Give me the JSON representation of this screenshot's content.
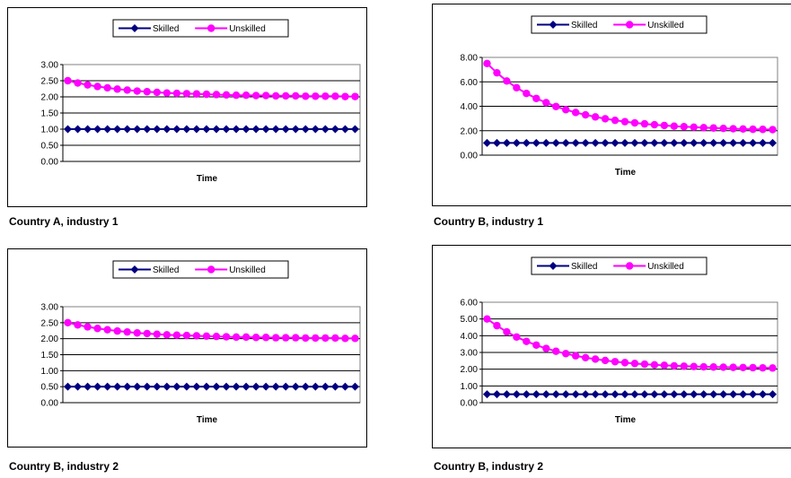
{
  "chart_data": [
    {
      "type": "line",
      "caption": "Country A, industry 1",
      "xlabel": "Time",
      "ylabel": "",
      "ylim": [
        0,
        3
      ],
      "yticks": [
        "0.00",
        "0.50",
        "1.00",
        "1.50",
        "2.00",
        "2.50",
        "3.00"
      ],
      "grid": true,
      "legend": "top-center",
      "series": [
        {
          "name": "Skilled",
          "color": "#000080",
          "marker": "diamond",
          "values": [
            1,
            1,
            1,
            1,
            1,
            1,
            1,
            1,
            1,
            1,
            1,
            1,
            1,
            1,
            1,
            1,
            1,
            1,
            1,
            1,
            1,
            1,
            1,
            1,
            1,
            1,
            1,
            1,
            1,
            1
          ]
        },
        {
          "name": "Unskilled",
          "color": "#ff00ff",
          "marker": "circle",
          "values": [
            2.5,
            2.43,
            2.37,
            2.32,
            2.28,
            2.24,
            2.21,
            2.18,
            2.16,
            2.14,
            2.12,
            2.11,
            2.1,
            2.09,
            2.08,
            2.07,
            2.06,
            2.05,
            2.05,
            2.04,
            2.04,
            2.03,
            2.03,
            2.03,
            2.02,
            2.02,
            2.02,
            2.02,
            2.01,
            2.01
          ]
        }
      ]
    },
    {
      "type": "line",
      "caption": "Country B, industry 1",
      "xlabel": "Time",
      "ylabel": "",
      "ylim": [
        0,
        8
      ],
      "yticks": [
        "0.00",
        "2.00",
        "4.00",
        "6.00",
        "8.00"
      ],
      "grid": true,
      "legend": "top-center",
      "series": [
        {
          "name": "Skilled",
          "color": "#000080",
          "marker": "diamond",
          "values": [
            1,
            1,
            1,
            1,
            1,
            1,
            1,
            1,
            1,
            1,
            1,
            1,
            1,
            1,
            1,
            1,
            1,
            1,
            1,
            1,
            1,
            1,
            1,
            1,
            1,
            1,
            1,
            1,
            1,
            1
          ]
        },
        {
          "name": "Unskilled",
          "color": "#ff00ff",
          "marker": "circle",
          "values": [
            7.5,
            6.74,
            6.07,
            5.52,
            5.05,
            4.64,
            4.3,
            3.98,
            3.72,
            3.49,
            3.3,
            3.13,
            2.98,
            2.85,
            2.74,
            2.64,
            2.56,
            2.49,
            2.43,
            2.37,
            2.33,
            2.29,
            2.25,
            2.22,
            2.19,
            2.16,
            2.14,
            2.12,
            2.11,
            2.09
          ]
        }
      ]
    },
    {
      "type": "line",
      "caption": "Country B, industry 2",
      "xlabel": "Time",
      "ylabel": "",
      "ylim": [
        0,
        3
      ],
      "yticks": [
        "0.00",
        "0.50",
        "1.00",
        "1.50",
        "2.00",
        "2.50",
        "3.00"
      ],
      "grid": true,
      "legend": "top-center",
      "series": [
        {
          "name": "Skilled",
          "color": "#000080",
          "marker": "diamond",
          "values": [
            0.5,
            0.5,
            0.5,
            0.5,
            0.5,
            0.5,
            0.5,
            0.5,
            0.5,
            0.5,
            0.5,
            0.5,
            0.5,
            0.5,
            0.5,
            0.5,
            0.5,
            0.5,
            0.5,
            0.5,
            0.5,
            0.5,
            0.5,
            0.5,
            0.5,
            0.5,
            0.5,
            0.5,
            0.5,
            0.5
          ]
        },
        {
          "name": "Unskilled",
          "color": "#ff00ff",
          "marker": "circle",
          "values": [
            2.5,
            2.43,
            2.37,
            2.32,
            2.28,
            2.24,
            2.21,
            2.18,
            2.16,
            2.14,
            2.12,
            2.11,
            2.1,
            2.09,
            2.08,
            2.07,
            2.06,
            2.05,
            2.05,
            2.04,
            2.04,
            2.03,
            2.03,
            2.03,
            2.02,
            2.02,
            2.02,
            2.02,
            2.01,
            2.01
          ]
        }
      ]
    },
    {
      "type": "line",
      "caption": "Country B, industry 2",
      "xlabel": "Time",
      "ylabel": "",
      "ylim": [
        0,
        6
      ],
      "yticks": [
        "0.00",
        "1.00",
        "2.00",
        "3.00",
        "4.00",
        "5.00",
        "6.00"
      ],
      "grid": true,
      "legend": "top-center",
      "series": [
        {
          "name": "Skilled",
          "color": "#000080",
          "marker": "diamond",
          "values": [
            0.5,
            0.5,
            0.5,
            0.5,
            0.5,
            0.5,
            0.5,
            0.5,
            0.5,
            0.5,
            0.5,
            0.5,
            0.5,
            0.5,
            0.5,
            0.5,
            0.5,
            0.5,
            0.5,
            0.5,
            0.5,
            0.5,
            0.5,
            0.5,
            0.5,
            0.5,
            0.5,
            0.5,
            0.5,
            0.5
          ]
        },
        {
          "name": "Unskilled",
          "color": "#ff00ff",
          "marker": "circle",
          "values": [
            5.0,
            4.6,
            4.23,
            3.92,
            3.66,
            3.44,
            3.24,
            3.07,
            2.93,
            2.8,
            2.69,
            2.6,
            2.52,
            2.45,
            2.39,
            2.34,
            2.3,
            2.26,
            2.23,
            2.2,
            2.18,
            2.16,
            2.14,
            2.13,
            2.12,
            2.11,
            2.1,
            2.09,
            2.08,
            2.07
          ]
        }
      ]
    }
  ]
}
